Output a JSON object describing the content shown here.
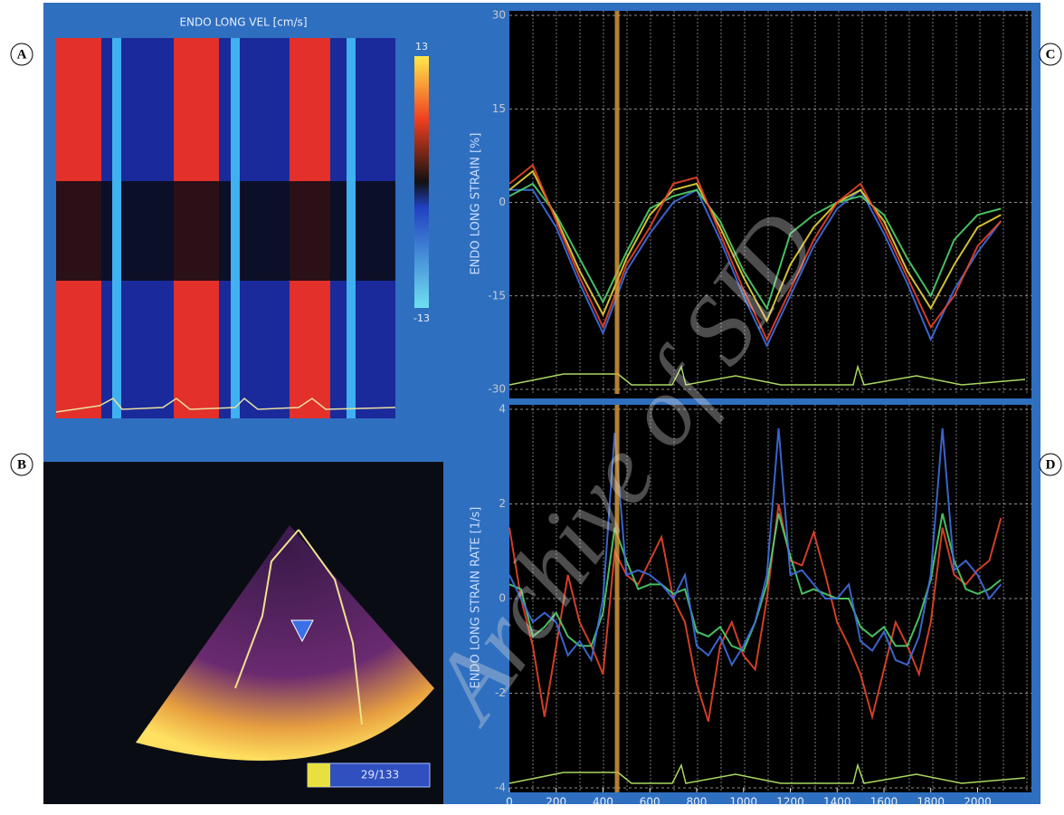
{
  "panel_labels": [
    "A",
    "B",
    "C",
    "D"
  ],
  "heatmap": {
    "title": "ENDO LONG VEL [cm/s]",
    "colorbar_ticks": [
      13,
      -13
    ]
  },
  "echo": {
    "counter": "29/133"
  },
  "watermark": "Archive of SID",
  "chart_data": [
    {
      "type": "line",
      "y_label": "ENDO LONG STRAIN [%]",
      "ylim": [
        -30,
        30
      ],
      "yticks": [
        -30,
        -15,
        0,
        15,
        30
      ],
      "xlim": [
        0,
        2230
      ],
      "cursor_x": 460,
      "grid": true,
      "x": [
        0,
        100,
        200,
        300,
        400,
        500,
        600,
        700,
        800,
        900,
        1000,
        1100,
        1200,
        1300,
        1400,
        1500,
        1600,
        1700,
        1800,
        1900,
        2000,
        2100
      ],
      "series": [
        {
          "color": "#3f6fe0",
          "values": [
            2,
            2,
            -4,
            -13,
            -21,
            -11,
            -5,
            0,
            2,
            -6,
            -15,
            -23,
            -15,
            -7,
            -1,
            2,
            -5,
            -13,
            -22,
            -14,
            -8,
            -3
          ]
        },
        {
          "color": "#4fd36a",
          "values": [
            1,
            3,
            -2,
            -9,
            -16,
            -8,
            -1,
            1,
            2,
            -3,
            -11,
            -17,
            -5,
            -2,
            0,
            1,
            -2,
            -9,
            -15,
            -6,
            -2,
            -1
          ]
        },
        {
          "color": "#e8d43a",
          "values": [
            2,
            5,
            -2.5,
            -11,
            -18,
            -9,
            -2,
            2,
            3,
            -4,
            -12,
            -19,
            -10,
            -4,
            0,
            2,
            -3,
            -11,
            -17,
            -10,
            -4,
            -2
          ]
        },
        {
          "color": "#e8452c",
          "values": [
            3,
            6,
            -3,
            -12,
            -20,
            -10,
            -4,
            3,
            4,
            -5,
            -14,
            -22,
            -14,
            -6,
            0,
            3,
            -4,
            -12,
            -20,
            -15,
            -7,
            -3
          ]
        }
      ]
    },
    {
      "type": "line",
      "y_label": "ENDO LONG STRAIN RATE [1/s]",
      "ylim": [
        -4,
        4
      ],
      "yticks": [
        -4,
        -2,
        0,
        2,
        4
      ],
      "xlim": [
        0,
        2230
      ],
      "xticks": [
        0,
        200,
        400,
        600,
        800,
        1000,
        1200,
        1400,
        1600,
        1800,
        2000
      ],
      "cursor_x": 460,
      "grid": true,
      "x": [
        0,
        50,
        100,
        150,
        200,
        250,
        300,
        350,
        400,
        450,
        500,
        550,
        600,
        650,
        700,
        750,
        800,
        850,
        900,
        950,
        1000,
        1050,
        1100,
        1150,
        1200,
        1250,
        1300,
        1350,
        1400,
        1450,
        1500,
        1550,
        1600,
        1650,
        1700,
        1750,
        1800,
        1850,
        1900,
        1950,
        2000,
        2050,
        2100
      ],
      "series": [
        {
          "color": "#e8452c",
          "values": [
            1.5,
            0,
            -1,
            -2.5,
            -1,
            0.5,
            -0.5,
            -1,
            -1.6,
            1,
            0.5,
            0.3,
            0.8,
            1.3,
            0,
            -0.5,
            -1.8,
            -2.6,
            -1,
            -0.5,
            -1.2,
            -1.5,
            0,
            2,
            0.8,
            0.7,
            1.4,
            0.5,
            -0.5,
            -1,
            -1.6,
            -2.5,
            -1.5,
            -0.5,
            -1,
            -1.6,
            -0.5,
            1.5,
            0.5,
            0.3,
            0.6,
            0.8,
            1.7
          ]
        },
        {
          "color": "#4fd36a",
          "values": [
            0.3,
            0.2,
            -0.8,
            -0.6,
            -0.3,
            -0.8,
            -1,
            -1,
            -0.3,
            1.5,
            0.8,
            0.2,
            0.3,
            0.3,
            0.1,
            0.2,
            -0.7,
            -0.8,
            -0.6,
            -1,
            -1.1,
            -0.5,
            0.3,
            1.8,
            0.9,
            0.1,
            0.2,
            0.1,
            0,
            0,
            -0.6,
            -0.8,
            -0.6,
            -1,
            -1,
            -0.4,
            0.4,
            1.8,
            0.8,
            0.2,
            0.1,
            0.2,
            0.4
          ]
        },
        {
          "color": "#3f6fe0",
          "values": [
            0.5,
            0,
            -0.5,
            -0.3,
            -0.5,
            -1.2,
            -0.9,
            -1.3,
            0,
            3.5,
            0.5,
            0.6,
            0.5,
            0.3,
            0,
            0.5,
            -1,
            -1.2,
            -0.8,
            -1.4,
            -1,
            -0.5,
            0.5,
            3.6,
            0.5,
            0.6,
            0.3,
            0,
            0,
            0.3,
            -0.9,
            -1.1,
            -0.7,
            -1.3,
            -1.4,
            -0.8,
            0.5,
            3.6,
            0.6,
            0.8,
            0.5,
            0,
            0.3
          ]
        }
      ]
    }
  ]
}
